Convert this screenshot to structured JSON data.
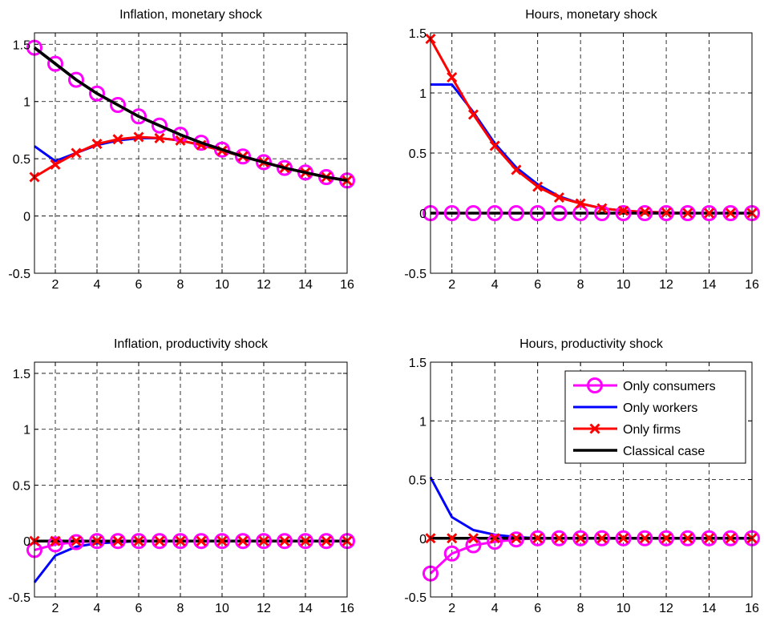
{
  "chart_data": [
    {
      "type": "line",
      "title": "Inflation, monetary shock",
      "x": [
        1,
        2,
        3,
        4,
        5,
        6,
        7,
        8,
        9,
        10,
        11,
        12,
        13,
        14,
        15,
        16
      ],
      "xlim": [
        1,
        16
      ],
      "ylim": [
        -0.5,
        1.6
      ],
      "xticks": [
        "2",
        "4",
        "6",
        "8",
        "10",
        "12",
        "14",
        "16"
      ],
      "yticks": [
        "-0.5",
        "0",
        "0.5",
        "1",
        "1.5"
      ],
      "grid": true,
      "series": [
        {
          "name": "Only consumers",
          "values": [
            1.47,
            1.33,
            1.19,
            1.07,
            0.97,
            0.87,
            0.79,
            0.71,
            0.64,
            0.58,
            0.52,
            0.47,
            0.42,
            0.38,
            0.34,
            0.31
          ]
        },
        {
          "name": "Only workers",
          "values": [
            0.61,
            0.48,
            0.55,
            0.62,
            0.66,
            0.68,
            0.68,
            0.66,
            0.62,
            0.58,
            0.52,
            0.47,
            0.42,
            0.38,
            0.34,
            0.31
          ]
        },
        {
          "name": "Only firms",
          "values": [
            0.34,
            0.45,
            0.55,
            0.63,
            0.67,
            0.69,
            0.68,
            0.66,
            0.62,
            0.57,
            0.52,
            0.47,
            0.42,
            0.38,
            0.34,
            0.31
          ]
        },
        {
          "name": "Classical case",
          "values": [
            1.47,
            1.33,
            1.19,
            1.07,
            0.97,
            0.87,
            0.79,
            0.71,
            0.64,
            0.58,
            0.52,
            0.47,
            0.42,
            0.38,
            0.34,
            0.31
          ]
        }
      ]
    },
    {
      "type": "line",
      "title": "Hours, monetary shock",
      "x": [
        1,
        2,
        3,
        4,
        5,
        6,
        7,
        8,
        9,
        10,
        11,
        12,
        13,
        14,
        15,
        16
      ],
      "xlim": [
        1,
        16
      ],
      "ylim": [
        -0.5,
        1.5
      ],
      "xticks": [
        "2",
        "4",
        "6",
        "8",
        "10",
        "12",
        "14",
        "16"
      ],
      "yticks": [
        "-0.5",
        "0",
        "0.5",
        "1",
        "1.5"
      ],
      "grid": true,
      "series": [
        {
          "name": "Only consumers",
          "values": [
            0,
            0,
            0,
            0,
            0,
            0,
            0,
            0,
            0,
            0,
            0,
            0,
            0,
            0,
            0,
            0
          ]
        },
        {
          "name": "Only workers",
          "values": [
            1.07,
            1.07,
            0.84,
            0.58,
            0.38,
            0.24,
            0.14,
            0.08,
            0.04,
            0.02,
            0.01,
            0.005,
            0,
            0,
            0,
            0
          ]
        },
        {
          "name": "Only firms",
          "values": [
            1.45,
            1.13,
            0.82,
            0.56,
            0.36,
            0.22,
            0.13,
            0.08,
            0.04,
            0.02,
            0.01,
            0.005,
            0,
            0,
            0,
            0
          ]
        },
        {
          "name": "Classical case",
          "values": [
            0,
            0,
            0,
            0,
            0,
            0,
            0,
            0,
            0,
            0,
            0,
            0,
            0,
            0,
            0,
            0
          ]
        }
      ]
    },
    {
      "type": "line",
      "title": "Inflation, productivity shock",
      "x": [
        1,
        2,
        3,
        4,
        5,
        6,
        7,
        8,
        9,
        10,
        11,
        12,
        13,
        14,
        15,
        16
      ],
      "xlim": [
        1,
        16
      ],
      "ylim": [
        -0.5,
        1.6
      ],
      "xticks": [
        "2",
        "4",
        "6",
        "8",
        "10",
        "12",
        "14",
        "16"
      ],
      "yticks": [
        "-0.5",
        "0",
        "0.5",
        "1",
        "1.5"
      ],
      "grid": true,
      "series": [
        {
          "name": "Only consumers",
          "values": [
            -0.08,
            -0.03,
            -0.01,
            0,
            0,
            0,
            0,
            0,
            0,
            0,
            0,
            0,
            0,
            0,
            0,
            0
          ]
        },
        {
          "name": "Only workers",
          "values": [
            -0.37,
            -0.13,
            -0.05,
            -0.02,
            -0.01,
            0,
            0,
            0,
            0,
            0,
            0,
            0,
            0,
            0,
            0,
            0
          ]
        },
        {
          "name": "Only firms",
          "values": [
            0,
            0,
            0,
            0,
            0,
            0,
            0,
            0,
            0,
            0,
            0,
            0,
            0,
            0,
            0,
            0
          ]
        },
        {
          "name": "Classical case",
          "values": [
            0,
            0,
            0,
            0,
            0,
            0,
            0,
            0,
            0,
            0,
            0,
            0,
            0,
            0,
            0,
            0
          ]
        }
      ]
    },
    {
      "type": "line",
      "title": "Hours, productivity shock",
      "x": [
        1,
        2,
        3,
        4,
        5,
        6,
        7,
        8,
        9,
        10,
        11,
        12,
        13,
        14,
        15,
        16
      ],
      "xlim": [
        1,
        16
      ],
      "ylim": [
        -0.5,
        1.5
      ],
      "xticks": [
        "2",
        "4",
        "6",
        "8",
        "10",
        "12",
        "14",
        "16"
      ],
      "yticks": [
        "-0.5",
        "0",
        "0.5",
        "1",
        "1.5"
      ],
      "grid": true,
      "legend": "top-right",
      "series": [
        {
          "name": "Only consumers",
          "values": [
            -0.3,
            -0.13,
            -0.06,
            -0.03,
            -0.01,
            0,
            0,
            0,
            0,
            0,
            0,
            0,
            0,
            0,
            0,
            0
          ]
        },
        {
          "name": "Only workers",
          "values": [
            0.52,
            0.18,
            0.07,
            0.03,
            0.01,
            0,
            0,
            0,
            0,
            0,
            0,
            0,
            0,
            0,
            0,
            0
          ]
        },
        {
          "name": "Only firms",
          "values": [
            0,
            0,
            0,
            0,
            0,
            0,
            0,
            0,
            0,
            0,
            0,
            0,
            0,
            0,
            0,
            0
          ]
        },
        {
          "name": "Classical case",
          "values": [
            0,
            0,
            0,
            0,
            0,
            0,
            0,
            0,
            0,
            0,
            0,
            0,
            0,
            0,
            0,
            0
          ]
        }
      ]
    }
  ],
  "legend": {
    "items": [
      {
        "label": "Only consumers",
        "color": "#ff00ff",
        "marker": "circle"
      },
      {
        "label": "Only workers",
        "color": "#0000ff",
        "marker": "none"
      },
      {
        "label": "Only firms",
        "color": "#ff0000",
        "marker": "x"
      },
      {
        "label": "Classical case",
        "color": "#000000",
        "marker": "none"
      }
    ]
  },
  "colors": {
    "Only consumers": "#ff00ff",
    "Only workers": "#0000ff",
    "Only firms": "#ff0000",
    "Classical case": "#000000"
  }
}
